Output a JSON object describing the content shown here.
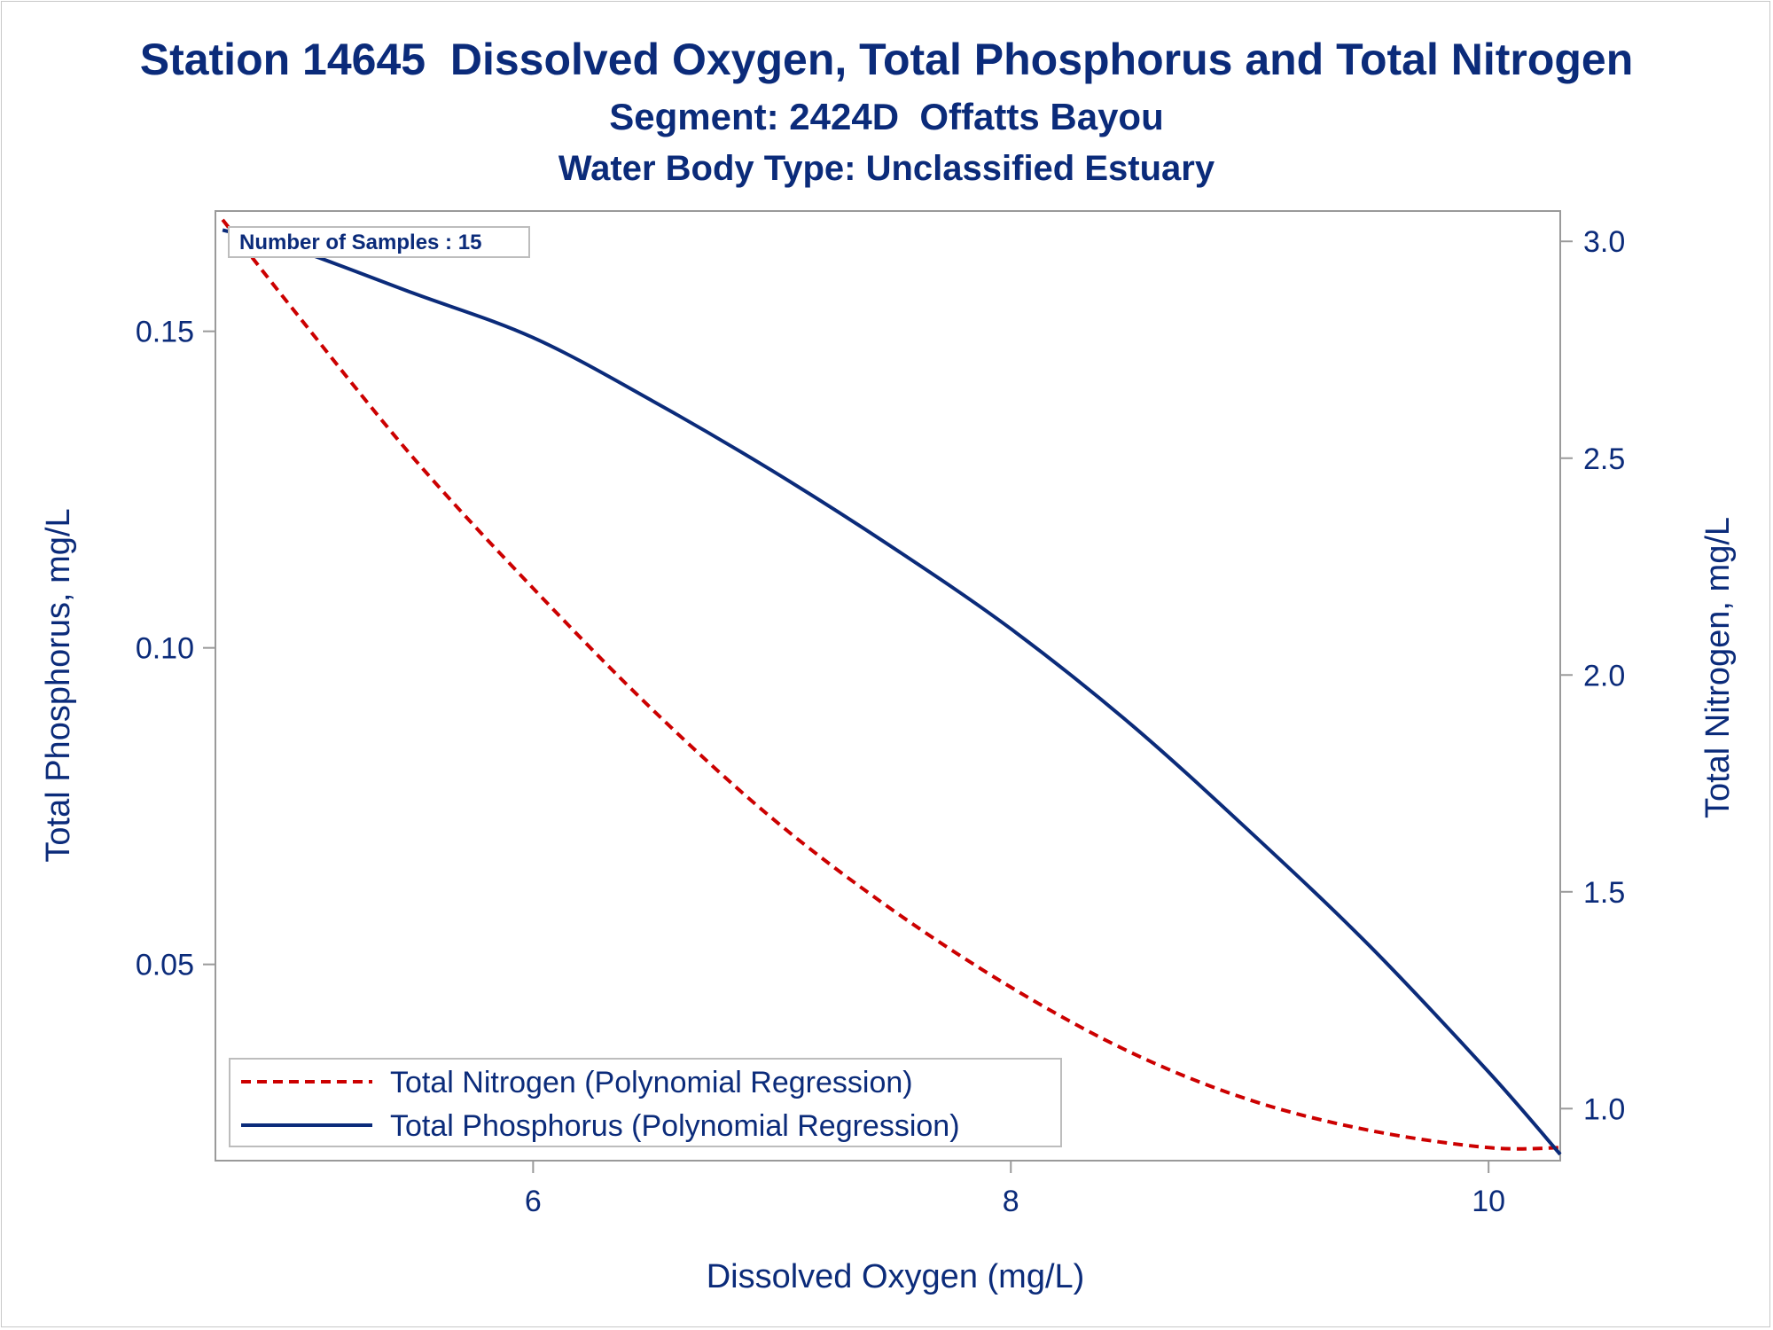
{
  "chart_data": {
    "type": "line",
    "title": "Station 14645  Dissolved Oxygen, Total Phosphorus and Total Nitrogen",
    "subtitle": "Segment: 2424D  Offatts Bayou",
    "subtitle2": "Water Body Type: Unclassified Estuary",
    "xlabel": "Dissolved Oxygen (mg/L)",
    "ylabel": "Total Phosphorus, mg/L",
    "y2label": "Total Nitrogen, mg/L",
    "xlim": [
      4.67,
      10.3
    ],
    "ylim": [
      0.019,
      0.169
    ],
    "y2lim": [
      0.88,
      3.07
    ],
    "x_ticks": [
      6,
      8,
      10
    ],
    "x_tick_labels": [
      "6",
      "8",
      "10"
    ],
    "y_ticks": [
      0.05,
      0.1,
      0.15
    ],
    "y_tick_labels": [
      "0.05",
      "0.10",
      "0.15"
    ],
    "y2_ticks": [
      1.0,
      1.5,
      2.0,
      2.5,
      3.0
    ],
    "y2_tick_labels": [
      "1.0",
      "1.5",
      "2.0",
      "2.5",
      "3.0"
    ],
    "annotation": "Number of Samples : 15",
    "legend_position": "bottom-left inside",
    "grid": false,
    "series": [
      {
        "name": "Total Nitrogen (Polynomial Regression)",
        "axis": "y2",
        "color": "#cc0000",
        "style": "dashed",
        "x": [
          4.7,
          5.0,
          5.5,
          6.0,
          6.5,
          7.0,
          7.5,
          8.0,
          8.5,
          9.0,
          9.5,
          10.0,
          10.3
        ],
        "y": [
          3.05,
          2.84,
          2.5,
          2.2,
          1.92,
          1.67,
          1.46,
          1.28,
          1.13,
          1.02,
          0.95,
          0.91,
          0.91
        ]
      },
      {
        "name": "Total Phosphorus (Polynomial Regression)",
        "axis": "y",
        "color": "#0b2b7a",
        "style": "solid",
        "x": [
          4.7,
          5.0,
          5.5,
          6.0,
          6.5,
          7.0,
          7.5,
          8.0,
          8.5,
          9.0,
          9.5,
          10.0,
          10.3
        ],
        "y": [
          0.166,
          0.163,
          0.156,
          0.149,
          0.139,
          0.128,
          0.116,
          0.103,
          0.088,
          0.071,
          0.053,
          0.033,
          0.02
        ]
      }
    ]
  }
}
